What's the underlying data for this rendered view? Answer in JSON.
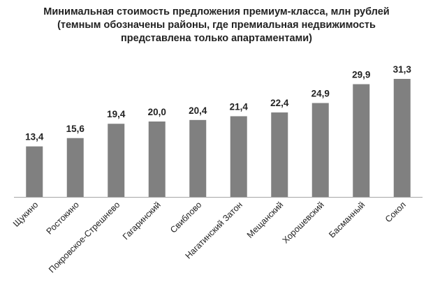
{
  "chart_data": {
    "type": "bar",
    "title_lines": [
      "Минимальная стоимость предложения премиум-класса, млн рублей",
      "(темным обозначены районы, где премиальная недвижимость",
      "представлена только апартаментами)"
    ],
    "categories": [
      "Щукино",
      "Ростокино",
      "Покровское-Стрешнево",
      "Гагаринский",
      "Свиблово",
      "Нагатинский Затон",
      "Мещанский",
      "Хорошевский",
      "Басманный",
      "Сокол"
    ],
    "values": [
      13.4,
      15.6,
      19.4,
      20.0,
      20.4,
      21.4,
      22.4,
      24.9,
      29.9,
      31.3
    ],
    "value_labels": [
      "13,4",
      "15,6",
      "19,4",
      "20,0",
      "20,4",
      "21,4",
      "22,4",
      "24,9",
      "29,9",
      "31,3"
    ],
    "ylim": [
      0,
      35
    ],
    "bar_color": "#808080",
    "axis_color": "#a6a6a6",
    "grid": false,
    "legend": "none"
  }
}
